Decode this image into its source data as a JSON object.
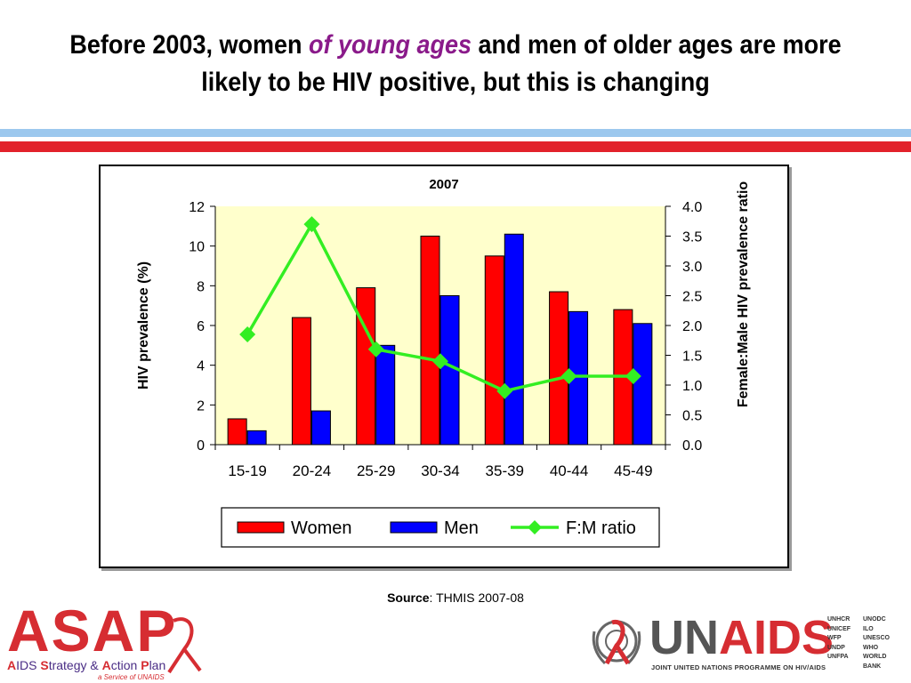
{
  "slide": {
    "title_part1": "Before 2003, women ",
    "title_highlight": "of young ages",
    "title_part2": " and men of older ages are more likely to be HIV positive, but this is changing",
    "source_label": "Source",
    "source_text": ": THMIS 2007-08"
  },
  "chart_data": {
    "type": "bar",
    "title": "2007",
    "categories": [
      "15-19",
      "20-24",
      "25-29",
      "30-34",
      "35-39",
      "40-44",
      "45-49"
    ],
    "series": [
      {
        "name": "Women",
        "type": "bar",
        "axis": "left",
        "color": "#ff0000",
        "values": [
          1.3,
          6.4,
          7.9,
          10.5,
          9.5,
          7.7,
          6.8
        ]
      },
      {
        "name": "Men",
        "type": "bar",
        "axis": "left",
        "color": "#0000ff",
        "values": [
          0.7,
          1.7,
          5.0,
          7.5,
          10.6,
          6.7,
          6.1
        ]
      },
      {
        "name": "F:M ratio",
        "type": "line",
        "axis": "right",
        "color": "#33ee22",
        "values": [
          1.85,
          3.7,
          1.6,
          1.4,
          0.9,
          1.15,
          1.15
        ]
      }
    ],
    "ylabel": "HIV prevalence (%)",
    "ylabel_right": "Female:Male HIV prevalence ratio",
    "ylim": [
      0,
      12
    ],
    "ylim_right": [
      0,
      4
    ],
    "yticks": [
      "0",
      "2",
      "4",
      "6",
      "8",
      "10",
      "12"
    ],
    "yticks_right": [
      "0.0",
      "0.5",
      "1.0",
      "1.5",
      "2.0",
      "2.5",
      "3.0",
      "3.5",
      "4.0"
    ],
    "plot_background": "#ffffcc",
    "legend_position": "bottom",
    "grid": false
  },
  "logos": {
    "asap_name": "ASAP",
    "asap_tagline_1": "A",
    "asap_tagline_2": "IDS ",
    "asap_tagline_3": "S",
    "asap_tagline_4": "trategy & ",
    "asap_tagline_5": "A",
    "asap_tagline_6": "ction ",
    "asap_tagline_7": "P",
    "asap_tagline_8": "lan",
    "asap_service": "a Service of UNAIDS",
    "unaids_un": "UN",
    "unaids_aids": "AIDS",
    "unaids_tagline": "JOINT UNITED NATIONS PROGRAMME ON HIV/AIDS",
    "cosponsors_col1": [
      "UNHCR",
      "UNICEF",
      "WFP",
      "UNDP",
      "UNFPA"
    ],
    "cosponsors_col2": [
      "UNODC",
      "ILO",
      "UNESCO",
      "WHO",
      "WORLD BANK"
    ]
  }
}
